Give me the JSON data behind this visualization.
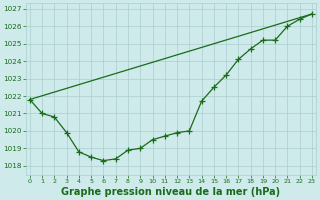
{
  "title": "Graphe pression niveau de la mer (hPa)",
  "line_curve": {
    "x": [
      0,
      1,
      2,
      3,
      4,
      5,
      6,
      7,
      8,
      9,
      10,
      11,
      12,
      13,
      14,
      15,
      16,
      17,
      18,
      19,
      20,
      21,
      22,
      23
    ],
    "y": [
      1021.8,
      1021.0,
      1020.8,
      1019.9,
      1018.8,
      1018.5,
      1018.3,
      1018.4,
      1018.9,
      1019.0,
      1019.5,
      1019.7,
      1019.9,
      1020.0,
      1021.7,
      1022.5,
      1023.2,
      1024.1,
      1024.7,
      1025.2,
      1025.2,
      1026.0,
      1026.4,
      1026.7
    ]
  },
  "line_straight": {
    "x": [
      0,
      23
    ],
    "y": [
      1021.8,
      1026.7
    ]
  },
  "xlim": [
    -0.3,
    23.3
  ],
  "ylim": [
    1017.5,
    1027.3
  ],
  "yticks": [
    1018,
    1019,
    1020,
    1021,
    1022,
    1023,
    1024,
    1025,
    1026,
    1027
  ],
  "xticks": [
    0,
    1,
    2,
    3,
    4,
    5,
    6,
    7,
    8,
    9,
    10,
    11,
    12,
    13,
    14,
    15,
    16,
    17,
    18,
    19,
    20,
    21,
    22,
    23
  ],
  "bg_color": "#ceeaea",
  "grid_color": "#aacece",
  "line_color": "#1a6b1a",
  "title_color": "#1a6b1a",
  "tick_color": "#1a6b1a",
  "title_fontsize": 7.0
}
